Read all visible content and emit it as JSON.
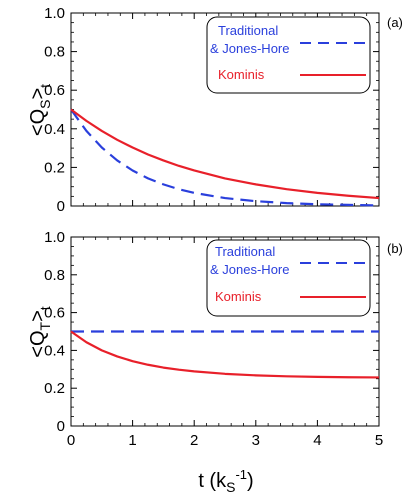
{
  "chart_data": [
    {
      "type": "line",
      "panel_label": "(a)",
      "ylabel": "<Q_S>_t",
      "ylabel_main": "<Q",
      "ylabel_sub_inner": "S",
      "ylabel_close": ">",
      "ylabel_sub_outer": "t",
      "xlim": [
        0,
        5
      ],
      "ylim": [
        0,
        1.0
      ],
      "xticks": [
        "0",
        "1",
        "2",
        "3",
        "4",
        "5"
      ],
      "yticks": [
        "0",
        "0.2",
        "0.4",
        "0.6",
        "0.8",
        "1.0"
      ],
      "legend_position": "top-right",
      "series": [
        {
          "name_line1": "Traditional",
          "name_line2": "& Jones-Hore",
          "color": "#2a3fdc",
          "style": "dashed",
          "x": [
            0,
            0.25,
            0.5,
            0.75,
            1.0,
            1.25,
            1.5,
            1.75,
            2.0,
            2.5,
            3.0,
            3.5,
            4.0,
            4.5,
            5.0
          ],
          "y": [
            0.5,
            0.389,
            0.303,
            0.236,
            0.184,
            0.143,
            0.112,
            0.087,
            0.068,
            0.041,
            0.025,
            0.015,
            0.009,
            0.006,
            0.003
          ]
        },
        {
          "name": "Kominis",
          "color": "#e8202a",
          "style": "solid",
          "x": [
            0,
            0.25,
            0.5,
            0.75,
            1.0,
            1.25,
            1.5,
            1.75,
            2.0,
            2.5,
            3.0,
            3.5,
            4.0,
            4.5,
            5.0
          ],
          "y": [
            0.5,
            0.441,
            0.389,
            0.343,
            0.303,
            0.267,
            0.236,
            0.208,
            0.184,
            0.143,
            0.112,
            0.087,
            0.068,
            0.053,
            0.041
          ]
        }
      ]
    },
    {
      "type": "line",
      "panel_label": "(b)",
      "ylabel": "<Q_T>_t",
      "ylabel_main": "<Q",
      "ylabel_sub_inner": "T",
      "ylabel_close": ">",
      "ylabel_sub_outer": "t",
      "xlabel": "t (k_S^-1)",
      "xlabel_main": "t (k",
      "xlabel_sub": "S",
      "xlabel_sup": "-1",
      "xlabel_close": ")",
      "xlim": [
        0,
        5
      ],
      "ylim": [
        0,
        1.0
      ],
      "xticks": [
        "0",
        "1",
        "2",
        "3",
        "4",
        "5"
      ],
      "yticks": [
        "0",
        "0.2",
        "0.4",
        "0.6",
        "0.8",
        "1.0"
      ],
      "legend_position": "top-right",
      "series": [
        {
          "name_line1": "Traditional",
          "name_line2": "& Jones-Hore",
          "color": "#2a3fdc",
          "style": "dashed",
          "x": [
            0,
            5
          ],
          "y": [
            0.5,
            0.5
          ]
        },
        {
          "name": "Kominis",
          "color": "#e8202a",
          "style": "solid",
          "x": [
            0,
            0.25,
            0.5,
            0.75,
            1.0,
            1.25,
            1.5,
            1.75,
            2.0,
            2.5,
            3.0,
            3.5,
            4.0,
            4.5,
            5.0
          ],
          "y": [
            0.5,
            0.443,
            0.4,
            0.368,
            0.343,
            0.324,
            0.309,
            0.298,
            0.289,
            0.276,
            0.268,
            0.263,
            0.26,
            0.258,
            0.257
          ]
        }
      ]
    }
  ]
}
